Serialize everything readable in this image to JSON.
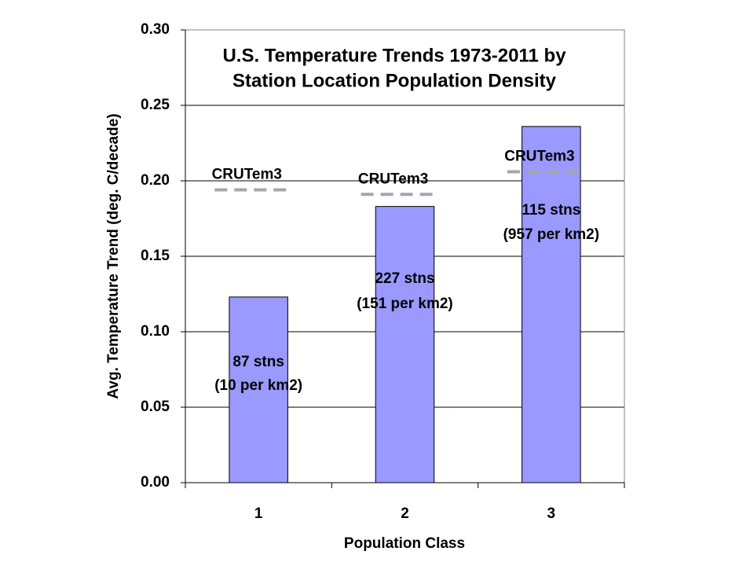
{
  "chart_data": {
    "type": "bar",
    "title": [
      "U.S. Temperature Trends 1973-2011 by",
      "Station Location Population Density"
    ],
    "x_label": "Population Class",
    "y_label": "Avg. Temperature Trend (deg. C/decade)",
    "categories": [
      "1",
      "2",
      "3"
    ],
    "values": [
      0.123,
      0.183,
      0.236
    ],
    "color": "#9999ff",
    "reference": {
      "name": "CRUTem3",
      "values": [
        0.194,
        0.191,
        0.206
      ],
      "color": "#a6a6a6"
    },
    "annotations": [
      [
        "87 stns",
        "(10 per km2)"
      ],
      [
        "227 stns",
        "(151 per km2)"
      ],
      [
        "115 stns",
        "(957 per km2)"
      ]
    ],
    "ylim": [
      0,
      0.3
    ],
    "yticks": [
      {
        "value": 0,
        "label": "0.00"
      },
      {
        "value": 0.05,
        "label": "0.05"
      },
      {
        "value": 0.1,
        "label": "0.10"
      },
      {
        "value": 0.15,
        "label": "0.15"
      },
      {
        "value": 0.2,
        "label": "0.20"
      },
      {
        "value": 0.25,
        "label": "0.25"
      },
      {
        "value": 0.3,
        "label": "0.30"
      }
    ],
    "grid": true
  }
}
